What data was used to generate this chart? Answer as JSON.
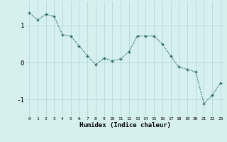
{
  "x": [
    0,
    1,
    2,
    3,
    4,
    5,
    6,
    7,
    8,
    9,
    10,
    11,
    12,
    13,
    14,
    15,
    16,
    17,
    18,
    19,
    20,
    21,
    22,
    23
  ],
  "y": [
    1.35,
    1.15,
    1.3,
    1.25,
    0.75,
    0.72,
    0.45,
    0.18,
    -0.05,
    0.12,
    0.05,
    0.1,
    0.3,
    0.72,
    0.72,
    0.72,
    0.5,
    0.18,
    -0.12,
    -0.18,
    -0.25,
    -1.1,
    -0.88,
    -0.55
  ],
  "line_color": "#2e6b5e",
  "marker": "+",
  "marker_size": 3,
  "xlabel": "Humidex (Indice chaleur)",
  "bg_color": "#d6f0f0",
  "grid_color": "#b8d8d8",
  "xlim": [
    -0.5,
    23.5
  ],
  "ylim": [
    -1.45,
    1.65
  ],
  "yticks": [
    -1,
    0,
    1
  ],
  "ytick_labels": [
    "-1",
    "0",
    "1"
  ],
  "xticks": [
    0,
    1,
    2,
    3,
    4,
    5,
    6,
    7,
    8,
    9,
    10,
    11,
    12,
    13,
    14,
    15,
    16,
    17,
    18,
    19,
    20,
    21,
    22,
    23
  ]
}
